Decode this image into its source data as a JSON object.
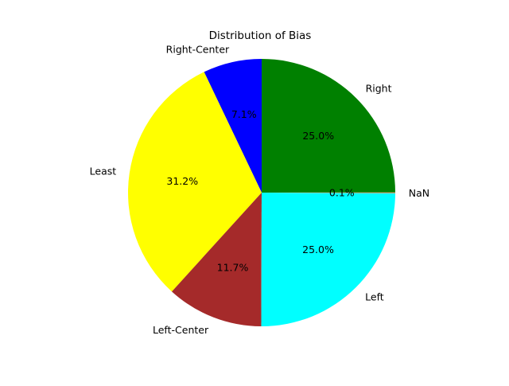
{
  "chart_data": {
    "type": "pie",
    "title": "Distribution of Bias",
    "start_angle_deg": 90,
    "direction": "counterclockwise",
    "slices": [
      {
        "label": "Right-Center",
        "value": 7.1,
        "pct_label": "7.1%",
        "color": "#0000ff"
      },
      {
        "label": "Least",
        "value": 31.2,
        "pct_label": "31.2%",
        "color": "#ffff00"
      },
      {
        "label": "Left-Center",
        "value": 11.7,
        "pct_label": "11.7%",
        "color": "#a52a2a"
      },
      {
        "label": "Left",
        "value": 25.0,
        "pct_label": "25.0%",
        "color": "#00ffff"
      },
      {
        "label": "NaN",
        "value": 0.1,
        "pct_label": "0.1%",
        "color": "#ff7f50"
      },
      {
        "label": "Right",
        "value": 25.0,
        "pct_label": "25.0%",
        "color": "#008000"
      }
    ]
  }
}
